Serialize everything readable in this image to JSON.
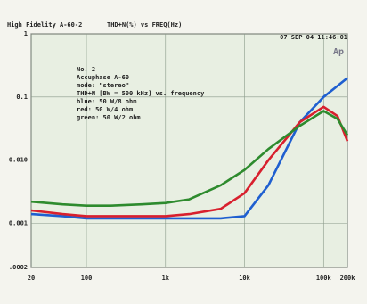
{
  "chart_data": {
    "type": "line",
    "title": "High Fidelity A-60-2",
    "subtitle": "THD+N(%) vs FREQ(Hz)",
    "timestamp": "07 SEP 04 11:46:01",
    "logo": "Ap",
    "annotation": [
      "No. 2",
      "Accuphase A-60",
      "mode: \"stereo\"",
      "THD+N [BW = 500 kHz] vs. frequency",
      "blue: 50 W/8 ohm",
      "red: 50 W/4 ohm",
      "green: 50 W/2 ohm"
    ],
    "x": [
      20,
      50,
      100,
      200,
      500,
      1000,
      2000,
      5000,
      10000,
      20000,
      50000,
      100000,
      150000,
      200000
    ],
    "series": [
      {
        "name": "blue",
        "color": "#1f5fd0",
        "values": [
          0.0014,
          0.0013,
          0.0012,
          0.0012,
          0.0012,
          0.0012,
          0.0012,
          0.0012,
          0.0013,
          0.004,
          0.04,
          0.1,
          0.15,
          0.2
        ]
      },
      {
        "name": "red",
        "color": "#d8202e",
        "values": [
          0.0016,
          0.0014,
          0.0013,
          0.0013,
          0.0013,
          0.0013,
          0.0014,
          0.0017,
          0.003,
          0.01,
          0.04,
          0.07,
          0.05,
          0.02
        ]
      },
      {
        "name": "green",
        "color": "#2e8b2e",
        "values": [
          0.0022,
          0.002,
          0.0019,
          0.0019,
          0.002,
          0.0021,
          0.0024,
          0.004,
          0.007,
          0.015,
          0.035,
          0.06,
          0.045,
          0.025
        ]
      }
    ],
    "xlim": [
      20,
      200000
    ],
    "ylim": [
      0.0002,
      1
    ],
    "xticks": [
      20,
      100,
      {
        "value": 1000,
        "label": "1k"
      },
      {
        "value": 10000,
        "label": "10k"
      },
      {
        "value": 100000,
        "label": "100k"
      },
      {
        "value": 200000,
        "label": "200k"
      }
    ],
    "yticks": [
      1,
      0.1,
      {
        "value": 0.01,
        "label": "0.010"
      },
      0.001,
      {
        "value": 0.0002,
        "label": ".0002"
      }
    ],
    "xlog": true,
    "ylog": true,
    "grid": true
  }
}
